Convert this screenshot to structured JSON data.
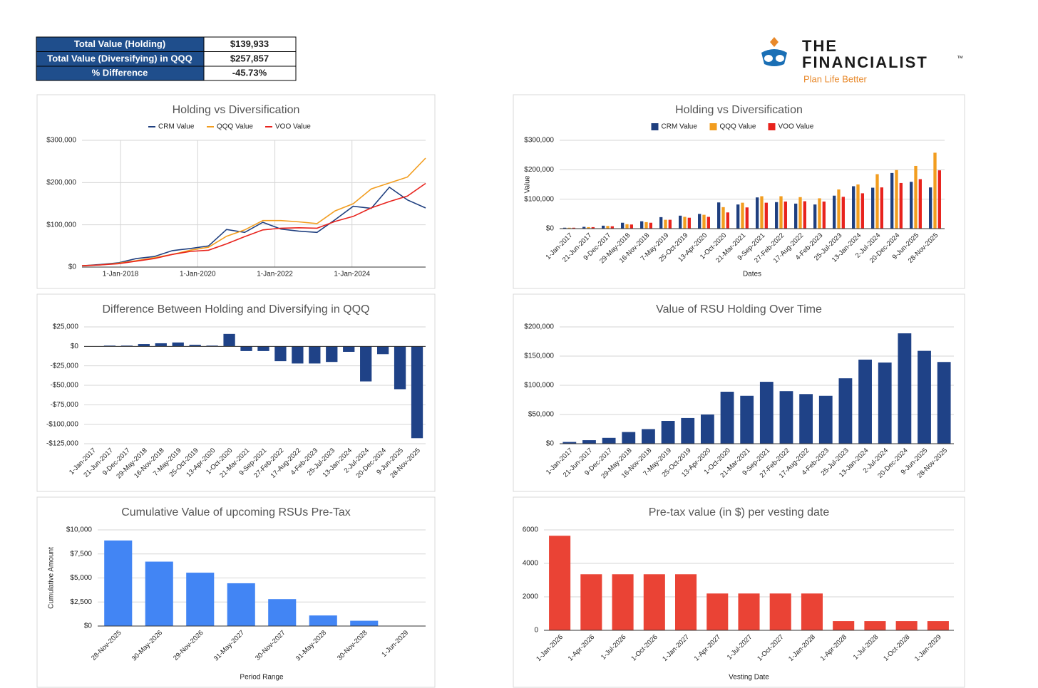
{
  "summary_table": {
    "rows": [
      [
        "Total Value (Holding)",
        "$139,933"
      ],
      [
        "Total Value (Diversifying) in QQQ",
        "$257,857"
      ],
      [
        "% Difference",
        "-45.73%"
      ]
    ]
  },
  "logo": {
    "line1": "THE",
    "line2": "FINANCIALIST",
    "trademark": "™",
    "tagline": "Plan Life Better"
  },
  "chart_data": [
    {
      "type": "line",
      "title": "Holding vs Diversification",
      "legend": "top",
      "grid": true,
      "x": [
        "1-Jan-2017",
        "21-Jun-2017",
        "9-Dec-2017",
        "29-May-2018",
        "16-Nov-2018",
        "7-May-2019",
        "25-Oct-2019",
        "13-Apr-2020",
        "1-Oct-2020",
        "21-Mar-2021",
        "9-Sep-2021",
        "27-Feb-2022",
        "17-Aug-2022",
        "4-Feb-2023",
        "25-Jul-2023",
        "13-Jan-2024",
        "2-Jul-2024",
        "20-Dec-2024",
        "9-Jun-2025",
        "28-Nov-2025"
      ],
      "xlim": [
        "1-Jan-2017",
        "28-Nov-2025"
      ],
      "xticks": [
        "1-Jan-2018",
        "1-Jan-2020",
        "1-Jan-2022",
        "1-Jan-2024"
      ],
      "ylim": [
        0,
        300000
      ],
      "yticks": [
        {
          "value": 0,
          "label": "$0"
        },
        {
          "value": 100000,
          "label": "$100,000"
        },
        {
          "value": 200000,
          "label": "$200,000"
        },
        {
          "value": 300000,
          "label": "$300,000"
        }
      ],
      "series": [
        {
          "name": "CRM Value",
          "color": "#1f3f7f",
          "values": [
            3000,
            6000,
            10000,
            20000,
            25000,
            39000,
            44000,
            50000,
            89000,
            82000,
            106000,
            90000,
            85000,
            82000,
            112000,
            144000,
            139000,
            189000,
            159000,
            139933
          ]
        },
        {
          "name": "QQQ Value",
          "color": "#f29d1f",
          "values": [
            3000,
            5000,
            9000,
            15000,
            22000,
            30000,
            40000,
            47000,
            73000,
            88000,
            110000,
            110000,
            107000,
            103000,
            133000,
            150000,
            185000,
            199000,
            213000,
            257857
          ]
        },
        {
          "name": "VOO Value",
          "color": "#e8231d",
          "values": [
            3000,
            5000,
            8000,
            14000,
            20000,
            30000,
            37000,
            40000,
            55000,
            72000,
            88000,
            92000,
            93000,
            92000,
            108000,
            120000,
            140000,
            155000,
            168000,
            198000
          ]
        }
      ]
    },
    {
      "type": "bar",
      "title": "Holding vs Diversification",
      "legend": "top",
      "grid": true,
      "y_label": "Value",
      "x_label": "Dates",
      "categories": [
        "1-Jan-2017",
        "21-Jun-2017",
        "9-Dec-2017",
        "29-May-2018",
        "16-Nov-2018",
        "7-May-2019",
        "25-Oct-2019",
        "13-Apr-2020",
        "1-Oct-2020",
        "21-Mar-2021",
        "9-Sep-2021",
        "27-Feb-2022",
        "17-Aug-2022",
        "4-Feb-2023",
        "25-Jul-2023",
        "13-Jan-2024",
        "2-Jul-2024",
        "20-Dec-2024",
        "9-Jun-2025",
        "28-Nov-2025"
      ],
      "ylim": [
        0,
        300000
      ],
      "yticks": [
        {
          "value": 0,
          "label": "$0"
        },
        {
          "value": 100000,
          "label": "$100,000"
        },
        {
          "value": 200000,
          "label": "$200,000"
        },
        {
          "value": 300000,
          "label": "$300,000"
        }
      ],
      "series": [
        {
          "name": "CRM Value",
          "color": "#1f3f7f",
          "values": [
            3000,
            6000,
            10000,
            20000,
            25000,
            39000,
            44000,
            50000,
            89000,
            82000,
            106000,
            90000,
            85000,
            82000,
            112000,
            144000,
            139000,
            189000,
            159000,
            139933
          ]
        },
        {
          "name": "QQQ Value",
          "color": "#f29d1f",
          "values": [
            3000,
            5000,
            9000,
            15000,
            22000,
            30000,
            40000,
            47000,
            73000,
            88000,
            110000,
            110000,
            107000,
            103000,
            133000,
            150000,
            185000,
            199000,
            213000,
            257857
          ]
        },
        {
          "name": "VOO Value",
          "color": "#e8231d",
          "values": [
            3000,
            5000,
            8000,
            14000,
            20000,
            30000,
            37000,
            40000,
            55000,
            72000,
            88000,
            92000,
            93000,
            92000,
            108000,
            120000,
            140000,
            155000,
            168000,
            198000
          ]
        }
      ]
    },
    {
      "type": "bar",
      "title": "Difference Between Holding and Diversifying in QQQ",
      "grid": true,
      "color": "#1f4287",
      "categories": [
        "1-Jan-2017",
        "21-Jun-2017",
        "9-Dec-2017",
        "29-May-2018",
        "16-Nov-2018",
        "7-May-2019",
        "25-Oct-2019",
        "13-Apr-2020",
        "1-Oct-2020",
        "21-Mar-2021",
        "9-Sep-2021",
        "27-Feb-2022",
        "17-Aug-2022",
        "4-Feb-2023",
        "25-Jul-2023",
        "13-Jan-2024",
        "2-Jul-2024",
        "20-Dec-2024",
        "9-Jun-2025",
        "28-Nov-2025"
      ],
      "values": [
        0,
        1000,
        1000,
        3000,
        4000,
        5000,
        2000,
        1000,
        16000,
        -6000,
        -6000,
        -19000,
        -22000,
        -22000,
        -20000,
        -7000,
        -45000,
        -10000,
        -55000,
        -117924
      ],
      "ylim": [
        -125000,
        25000
      ],
      "yticks": [
        {
          "value": 25000,
          "label": "$25,000"
        },
        {
          "value": 0,
          "label": "$0"
        },
        {
          "value": -25000,
          "label": "-$25,000"
        },
        {
          "value": -50000,
          "label": "-$50,000"
        },
        {
          "value": -75000,
          "label": "-$75,000"
        },
        {
          "value": -100000,
          "label": "-$100,000"
        },
        {
          "value": -125000,
          "label": "-$125,000"
        }
      ]
    },
    {
      "type": "bar",
      "title": "Value of RSU Holding Over Time",
      "grid": true,
      "color": "#1f4287",
      "categories": [
        "1-Jan-2017",
        "21-Jun-2017",
        "9-Dec-2017",
        "29-May-2018",
        "16-Nov-2018",
        "7-May-2019",
        "25-Oct-2019",
        "13-Apr-2020",
        "1-Oct-2020",
        "21-Mar-2021",
        "9-Sep-2021",
        "27-Feb-2022",
        "17-Aug-2022",
        "4-Feb-2023",
        "25-Jul-2023",
        "13-Jan-2024",
        "2-Jul-2024",
        "20-Dec-2024",
        "9-Jun-2025",
        "28-Nov-2025"
      ],
      "values": [
        3000,
        6000,
        10000,
        20000,
        25000,
        39000,
        44000,
        50000,
        89000,
        82000,
        106000,
        90000,
        85000,
        82000,
        112000,
        144000,
        139000,
        189000,
        159000,
        139933
      ],
      "ylim": [
        0,
        200000
      ],
      "yticks": [
        {
          "value": 0,
          "label": "$0"
        },
        {
          "value": 50000,
          "label": "$50,000"
        },
        {
          "value": 100000,
          "label": "$100,000"
        },
        {
          "value": 150000,
          "label": "$150,000"
        },
        {
          "value": 200000,
          "label": "$200,000"
        }
      ]
    },
    {
      "type": "bar",
      "title": "Cumulative Value of upcoming RSUs Pre-Tax",
      "grid": true,
      "color": "#4285f4",
      "y_label": "Cumulative Amount",
      "x_label": "Period Range",
      "categories": [
        "28-Nov-2025",
        "30-May-2026",
        "29-Nov-2026",
        "31-May-2027",
        "30-Nov-2027",
        "31-May-2028",
        "30-Nov-2028",
        "1-Jun-2029"
      ],
      "values": [
        8900,
        6700,
        5550,
        4450,
        2800,
        1100,
        550,
        0
      ],
      "ylim": [
        0,
        10000
      ],
      "yticks": [
        {
          "value": 0,
          "label": "$0"
        },
        {
          "value": 2500,
          "label": "$2,500"
        },
        {
          "value": 5000,
          "label": "$5,000"
        },
        {
          "value": 7500,
          "label": "$7,500"
        },
        {
          "value": 10000,
          "label": "$10,000"
        }
      ]
    },
    {
      "type": "bar",
      "title": "Pre-tax value (in $) per vesting date",
      "grid": true,
      "color": "#ea4335",
      "x_label": "Vesting Date",
      "categories": [
        "1-Jan-2026",
        "1-Apr-2026",
        "1-Jul-2026",
        "1-Oct-2026",
        "1-Jan-2027",
        "1-Apr-2027",
        "1-Jul-2027",
        "1-Oct-2027",
        "1-Jan-2028",
        "1-Apr-2028",
        "1-Jul-2028",
        "1-Oct-2028",
        "1-Jan-2029"
      ],
      "values": [
        5650,
        3350,
        3350,
        3350,
        3350,
        2200,
        2200,
        2200,
        2200,
        550,
        550,
        550,
        550
      ],
      "ylim": [
        0,
        6000
      ],
      "yticks": [
        0,
        2000,
        4000,
        6000
      ]
    }
  ]
}
